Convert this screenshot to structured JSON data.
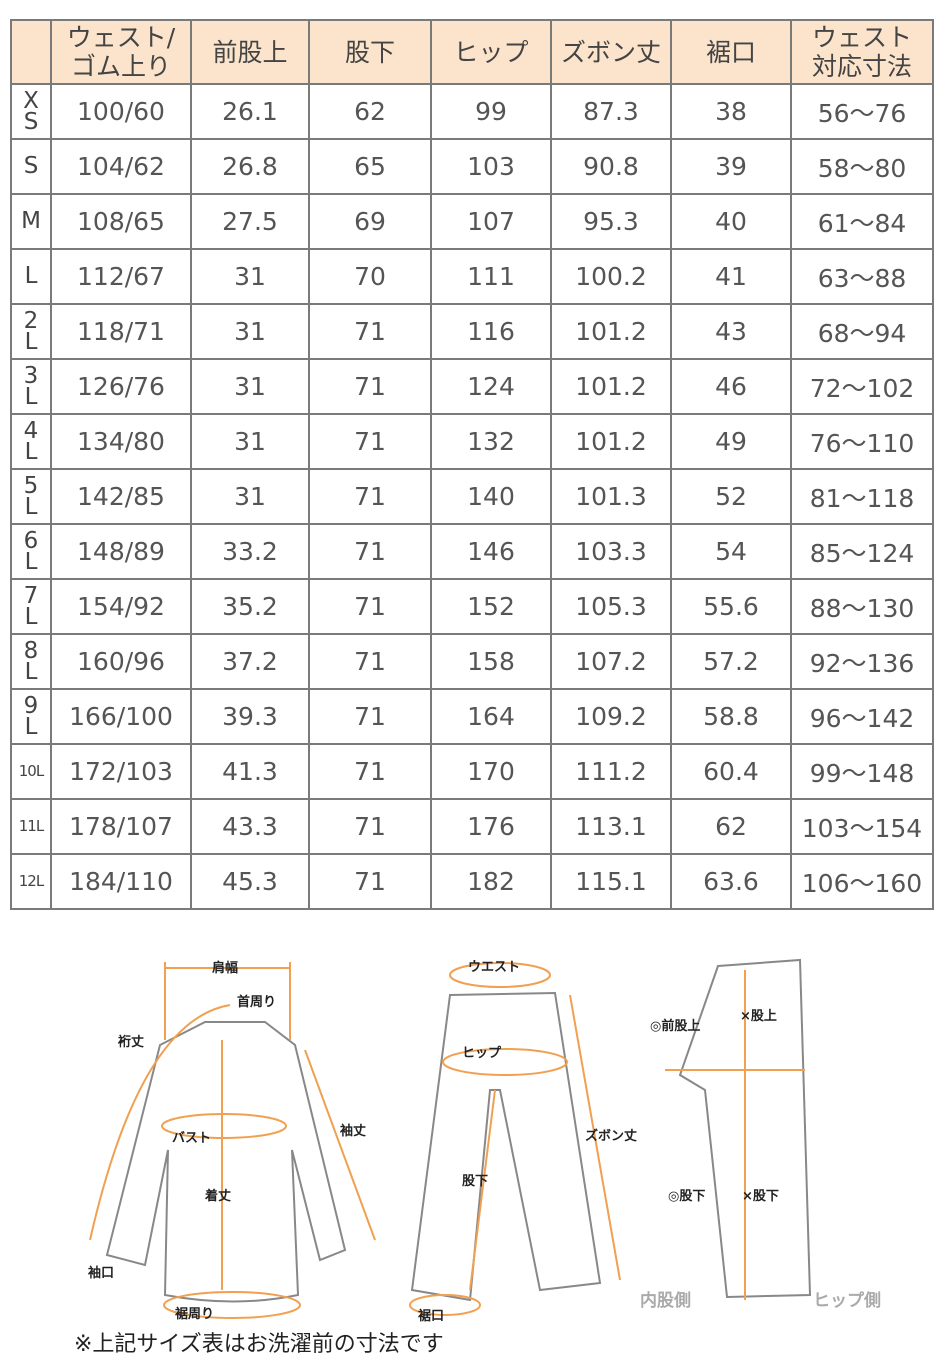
{
  "table": {
    "headers": [
      "",
      "ウェスト/\nゴム上り",
      "前股上",
      "股下",
      "ヒップ",
      "ズボン丈",
      "裾口",
      "ウェスト\n対応寸法"
    ],
    "rows": [
      [
        "XS",
        "100/60",
        "26.1",
        "62",
        "99",
        "87.3",
        "38",
        "56～76"
      ],
      [
        "S",
        "104/62",
        "26.8",
        "65",
        "103",
        "90.8",
        "39",
        "58～80"
      ],
      [
        "M",
        "108/65",
        "27.5",
        "69",
        "107",
        "95.3",
        "40",
        "61～84"
      ],
      [
        "L",
        "112/67",
        "31",
        "70",
        "111",
        "100.2",
        "41",
        "63～88"
      ],
      [
        "2L",
        "118/71",
        "31",
        "71",
        "116",
        "101.2",
        "43",
        "68～94"
      ],
      [
        "3L",
        "126/76",
        "31",
        "71",
        "124",
        "101.2",
        "46",
        "72～102"
      ],
      [
        "4L",
        "134/80",
        "31",
        "71",
        "132",
        "101.2",
        "49",
        "76～110"
      ],
      [
        "5L",
        "142/85",
        "31",
        "71",
        "140",
        "101.3",
        "52",
        "81～118"
      ],
      [
        "6L",
        "148/89",
        "33.2",
        "71",
        "146",
        "103.3",
        "54",
        "85～124"
      ],
      [
        "7L",
        "154/92",
        "35.2",
        "71",
        "152",
        "105.3",
        "55.6",
        "88～130"
      ],
      [
        "8L",
        "160/96",
        "37.2",
        "71",
        "158",
        "107.2",
        "57.2",
        "92～136"
      ],
      [
        "9L",
        "166/100",
        "39.3",
        "71",
        "164",
        "109.2",
        "58.8",
        "96～142"
      ],
      [
        "10L",
        "172/103",
        "41.3",
        "71",
        "170",
        "111.2",
        "60.4",
        "99～148"
      ],
      [
        "11L",
        "178/107",
        "43.3",
        "71",
        "176",
        "113.1",
        "62",
        "103～154"
      ],
      [
        "12L",
        "184/110",
        "45.3",
        "71",
        "182",
        "115.1",
        "63.6",
        "106～160"
      ]
    ]
  },
  "diagram": {
    "shirt_labels": {
      "shoulder": "肩幅",
      "neck": "首周り",
      "yuki": "裄丈",
      "bust": "バスト",
      "sleeve": "袖丈",
      "length": "着丈",
      "cuff": "袖口",
      "hem": "裾周り"
    },
    "pants_labels": {
      "waist": "ウエスト",
      "hip": "ヒップ",
      "inseam": "股下",
      "length": "ズボン丈",
      "hem": "裾口"
    },
    "side_labels": {
      "front_rise": "◎前股上",
      "rise": "×股上",
      "inseam_o": "◎股下",
      "inseam_x": "×股下",
      "inner": "内股側",
      "hip_side": "ヒップ側"
    },
    "accent_color": "#f0a050"
  },
  "note": "※上記サイズ表はお洗濯前の寸法です"
}
